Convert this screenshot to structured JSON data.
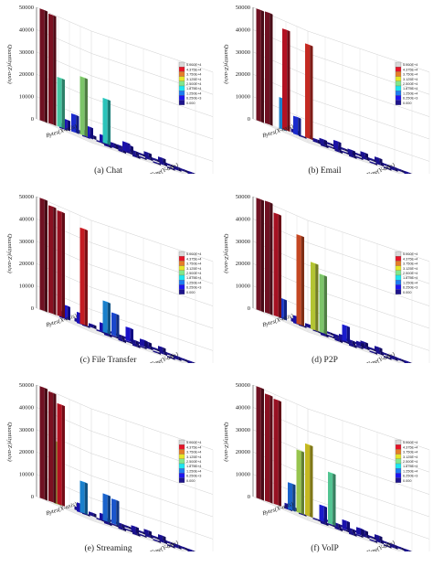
{
  "chart_data": [
    {
      "type": "bar",
      "subtype": "3d-bar",
      "caption": "(a)  Chat",
      "zlabel": "Quantity(Z-axis)",
      "xlabel": "Bytes(X-axis)",
      "ylabel": "Time(Y-axis)",
      "zticks": [
        "0",
        "10000",
        "20000",
        "30000",
        "40000",
        "50000"
      ],
      "zlim": [
        0,
        50000
      ],
      "grid": true,
      "legend_position": "right",
      "colormap": "jet",
      "legend_labels": [
        "0.000",
        "6.250E+3",
        "1.250E+4",
        "1.875E+4",
        "2.500E+4",
        "3.125E+4",
        "3.750E+4",
        "4.375E+4",
        "5.000E+4"
      ],
      "bars": [
        {
          "xi": 0,
          "yi": 0,
          "z": 50000
        },
        {
          "xi": 1,
          "yi": 0,
          "z": 49000
        },
        {
          "xi": 2,
          "yi": 0,
          "z": 22000
        },
        {
          "xi": 4,
          "yi": 1,
          "z": 26000
        },
        {
          "xi": 6,
          "yi": 2,
          "z": 20000
        },
        {
          "xi": 3,
          "yi": 1,
          "z": 8000
        },
        {
          "xi": 2,
          "yi": 1,
          "z": 4500
        },
        {
          "xi": 4,
          "yi": 2,
          "z": 5000
        },
        {
          "xi": 5,
          "yi": 3,
          "z": 3500
        },
        {
          "xi": 7,
          "yi": 4,
          "z": 4000
        },
        {
          "xi": 8,
          "yi": 3,
          "z": 3000
        },
        {
          "xi": 1,
          "yi": 2,
          "z": 2500
        },
        {
          "xi": 3,
          "yi": 3,
          "z": 3000
        },
        {
          "xi": 5,
          "yi": 5,
          "z": 1500
        }
      ]
    },
    {
      "type": "bar",
      "subtype": "3d-bar",
      "caption": "(b)  Email",
      "zlabel": "Quantity(Z-axis)",
      "xlabel": "Bytes(X-axis)",
      "ylabel": "Time(Y-axis)",
      "zticks": [
        "0",
        "10000",
        "20000",
        "30000",
        "40000",
        "50000"
      ],
      "zlim": [
        0,
        50000
      ],
      "grid": true,
      "legend_position": "right",
      "colormap": "jet",
      "legend_labels": [
        "0.000",
        "6.250E+3",
        "1.250E+4",
        "1.875E+4",
        "2.500E+4",
        "3.125E+4",
        "3.750E+4",
        "4.375E+4",
        "5.000E+4"
      ],
      "bars": [
        {
          "xi": 0,
          "yi": 0,
          "z": 50000
        },
        {
          "xi": 1,
          "yi": 0,
          "z": 50000
        },
        {
          "xi": 3,
          "yi": 0,
          "z": 45000
        },
        {
          "xi": 5,
          "yi": 1,
          "z": 42000
        },
        {
          "xi": 2,
          "yi": 1,
          "z": 14000
        },
        {
          "xi": 3,
          "yi": 2,
          "z": 8000
        },
        {
          "xi": 7,
          "yi": 3,
          "z": 3500
        },
        {
          "xi": 6,
          "yi": 2,
          "z": 2000
        },
        {
          "xi": 8,
          "yi": 4,
          "z": 2000
        },
        {
          "xi": 4,
          "yi": 4,
          "z": 1500
        }
      ]
    },
    {
      "type": "bar",
      "subtype": "3d-bar",
      "caption": "(c)  File Transfer",
      "zlabel": "Quantity(Z-axis)",
      "xlabel": "Bytes(X-axis)",
      "ylabel": "Time(Y-axis)",
      "zticks": [
        "0",
        "10000",
        "20000",
        "30000",
        "40000",
        "50000"
      ],
      "zlim": [
        0,
        50000
      ],
      "grid": true,
      "legend_position": "right",
      "colormap": "jet",
      "legend_labels": [
        "0.000",
        "6.250E+3",
        "1.250E+4",
        "1.875E+4",
        "2.500E+4",
        "3.125E+4",
        "3.750E+4",
        "4.375E+4",
        "5.000E+4"
      ],
      "bars": [
        {
          "xi": 0,
          "yi": 0,
          "z": 50000
        },
        {
          "xi": 1,
          "yi": 0,
          "z": 48000
        },
        {
          "xi": 2,
          "yi": 0,
          "z": 47000
        },
        {
          "xi": 4,
          "yi": 1,
          "z": 43000
        },
        {
          "xi": 6,
          "yi": 2,
          "z": 14000
        },
        {
          "xi": 7,
          "yi": 2,
          "z": 10000
        },
        {
          "xi": 8,
          "yi": 3,
          "z": 6000
        },
        {
          "xi": 2,
          "yi": 1,
          "z": 6000
        },
        {
          "xi": 3,
          "yi": 2,
          "z": 5000
        },
        {
          "xi": 5,
          "yi": 3,
          "z": 4000
        },
        {
          "xi": 9,
          "yi": 4,
          "z": 3000
        },
        {
          "xi": 1,
          "yi": 2,
          "z": 3000
        }
      ]
    },
    {
      "type": "bar",
      "subtype": "3d-bar",
      "caption": "(d)  P2P",
      "zlabel": "Quantity(Z-axis)",
      "xlabel": "Bytes(X-axis)",
      "ylabel": "Time(Y-axis)",
      "zticks": [
        "0",
        "10000",
        "20000",
        "30000",
        "40000",
        "50000"
      ],
      "zlim": [
        0,
        50000
      ],
      "grid": true,
      "legend_position": "right",
      "colormap": "jet",
      "legend_labels": [
        "0.000",
        "6.250E+3",
        "1.250E+4",
        "1.875E+4",
        "2.500E+4",
        "3.125E+4",
        "3.750E+4",
        "4.375E+4",
        "5.000E+4"
      ],
      "bars": [
        {
          "xi": 0,
          "yi": 0,
          "z": 50000
        },
        {
          "xi": 1,
          "yi": 0,
          "z": 50000
        },
        {
          "xi": 2,
          "yi": 0,
          "z": 46000
        },
        {
          "xi": 4,
          "yi": 1,
          "z": 40000
        },
        {
          "xi": 5,
          "yi": 2,
          "z": 30000
        },
        {
          "xi": 6,
          "yi": 2,
          "z": 26000
        },
        {
          "xi": 2,
          "yi": 1,
          "z": 9000
        },
        {
          "xi": 8,
          "yi": 3,
          "z": 7000
        },
        {
          "xi": 3,
          "yi": 2,
          "z": 3500
        },
        {
          "xi": 7,
          "yi": 4,
          "z": 2500
        },
        {
          "xi": 9,
          "yi": 4,
          "z": 2000
        }
      ]
    },
    {
      "type": "bar",
      "subtype": "3d-bar",
      "caption": "(e)  Streaming",
      "zlabel": "Quantity(Z-axis)",
      "xlabel": "Bytes(X-axis)",
      "ylabel": "Time(Y-axis)",
      "zticks": [
        "0",
        "10000",
        "20000",
        "30000",
        "40000",
        "50000"
      ],
      "zlim": [
        0,
        50000
      ],
      "grid": true,
      "legend_position": "right",
      "colormap": "jet",
      "legend_labels": [
        "0.000",
        "6.250E+3",
        "1.250E+4",
        "1.875E+4",
        "2.500E+4",
        "3.125E+4",
        "3.750E+4",
        "4.375E+4",
        "5.000E+4"
      ],
      "bars": [
        {
          "xi": 0,
          "yi": 0,
          "z": 50000
        },
        {
          "xi": 1,
          "yi": 0,
          "z": 49000
        },
        {
          "xi": 2,
          "yi": 0,
          "z": 45000
        },
        {
          "xi": 1,
          "yi": 1,
          "z": 28000
        },
        {
          "xi": 4,
          "yi": 1,
          "z": 14000
        },
        {
          "xi": 6,
          "yi": 2,
          "z": 12000
        },
        {
          "xi": 7,
          "yi": 2,
          "z": 11000
        },
        {
          "xi": 3,
          "yi": 2,
          "z": 4000
        },
        {
          "xi": 5,
          "yi": 3,
          "z": 3000
        },
        {
          "xi": 8,
          "yi": 4,
          "z": 2500
        }
      ]
    },
    {
      "type": "bar",
      "subtype": "3d-bar",
      "caption": "(f)  VoIP",
      "zlabel": "Quantity(Z-axis)",
      "xlabel": "Bytes(X-axis)",
      "ylabel": "Time(Y-axis)",
      "zticks": [
        "0",
        "10000",
        "20000",
        "30000",
        "40000",
        "50000"
      ],
      "zlim": [
        0,
        50000
      ],
      "grid": true,
      "legend_position": "right",
      "colormap": "jet",
      "legend_labels": [
        "0.000",
        "6.250E+3",
        "1.250E+4",
        "1.875E+4",
        "2.500E+4",
        "3.125E+4",
        "3.750E+4",
        "4.375E+4",
        "5.000E+4"
      ],
      "bars": [
        {
          "xi": 0,
          "yi": 0,
          "z": 50000
        },
        {
          "xi": 1,
          "yi": 0,
          "z": 48000
        },
        {
          "xi": 2,
          "yi": 0,
          "z": 47000
        },
        {
          "xi": 5,
          "yi": 1,
          "z": 32000
        },
        {
          "xi": 4,
          "yi": 1,
          "z": 28000
        },
        {
          "xi": 7,
          "yi": 2,
          "z": 23000
        },
        {
          "xi": 3,
          "yi": 1,
          "z": 12000
        },
        {
          "xi": 6,
          "yi": 2,
          "z": 7000
        },
        {
          "xi": 8,
          "yi": 3,
          "z": 4000
        },
        {
          "xi": 9,
          "yi": 4,
          "z": 3000
        },
        {
          "xi": 2,
          "yi": 2,
          "z": 2500
        }
      ]
    }
  ]
}
